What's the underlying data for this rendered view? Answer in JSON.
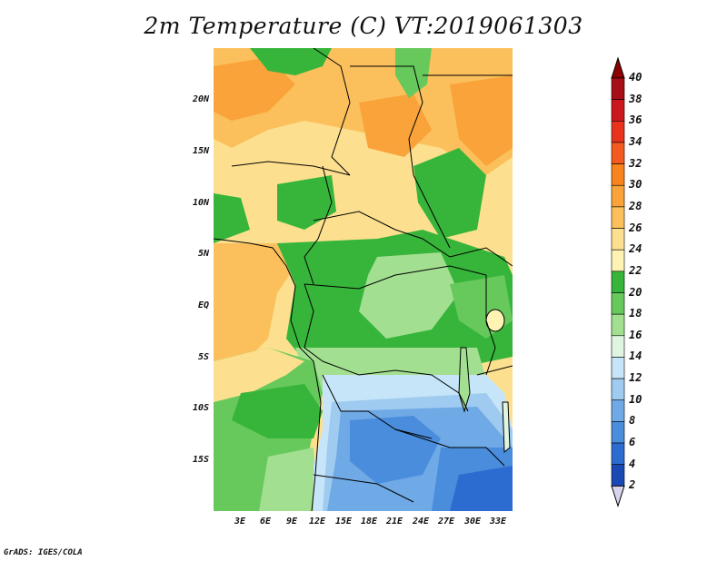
{
  "title": "2m Temperature (C) VT:2019061303",
  "credit": "GrADS: IGES/COLA",
  "map": {
    "lat_labels": [
      "20N",
      "15N",
      "10N",
      "5N",
      "EQ",
      "5S",
      "10S",
      "15S"
    ],
    "lon_labels": [
      "3E",
      "6E",
      "9E",
      "12E",
      "15E",
      "18E",
      "21E",
      "24E",
      "27E",
      "30E",
      "33E"
    ]
  },
  "colorbar": {
    "labels": [
      "40",
      "38",
      "36",
      "34",
      "32",
      "30",
      "28",
      "26",
      "24",
      "22",
      "20",
      "18",
      "16",
      "14",
      "12",
      "10",
      "8",
      "6",
      "4",
      "2"
    ],
    "colors": [
      "#a50f15",
      "#cb181d",
      "#e8321c",
      "#f25a1f",
      "#f7841c",
      "#f9a33a",
      "#fbc05c",
      "#fde08f",
      "#fef3b3",
      "#36b53a",
      "#67c95c",
      "#a3df91",
      "#dff5e2",
      "#c7e5f8",
      "#9fcbf0",
      "#6fa9e6",
      "#4a8ddc",
      "#2c6cd1",
      "#1a49b5",
      "#0c2081"
    ],
    "top_arrow_color": "#8b0000",
    "bottom_arrow_color": "#d9d3ee"
  }
}
